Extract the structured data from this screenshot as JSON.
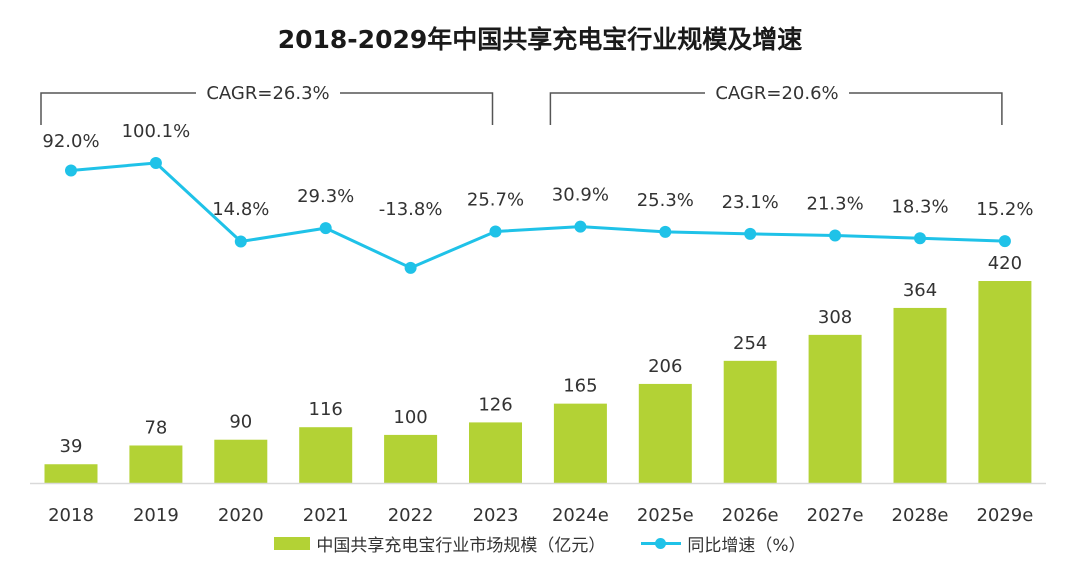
{
  "chart_data": {
    "type": "bar+line",
    "title": "2018-2029年中国共享充电宝行业规模及增速",
    "categories": [
      "2018",
      "2019",
      "2020",
      "2021",
      "2022",
      "2023",
      "2024e",
      "2025e",
      "2026e",
      "2027e",
      "2028e",
      "2029e"
    ],
    "series": [
      {
        "name": "中国共享充电宝行业市场规模（亿元）",
        "type": "bar",
        "color": "#b3d235",
        "values": [
          39,
          78,
          90,
          116,
          100,
          126,
          165,
          206,
          254,
          308,
          364,
          420
        ]
      },
      {
        "name": "同比增速（%）",
        "type": "line",
        "color": "#1fc2e8",
        "values": [
          92.0,
          100.1,
          14.8,
          29.3,
          -13.8,
          25.7,
          30.9,
          25.3,
          23.1,
          21.3,
          18.3,
          15.2
        ],
        "labels": [
          "92.0%",
          "100.1%",
          "14.8%",
          "29.3%",
          "-13.8%",
          "25.7%",
          "30.9%",
          "25.3%",
          "23.1%",
          "21.3%",
          "18.3%",
          "15.2%"
        ]
      }
    ],
    "annotations": [
      {
        "text": "CAGR=26.3%",
        "from": "2018",
        "to": "2023"
      },
      {
        "text": "CAGR=20.6%",
        "from": "2024e",
        "to": "2029e"
      }
    ],
    "legend": "bottom",
    "grid": false
  }
}
